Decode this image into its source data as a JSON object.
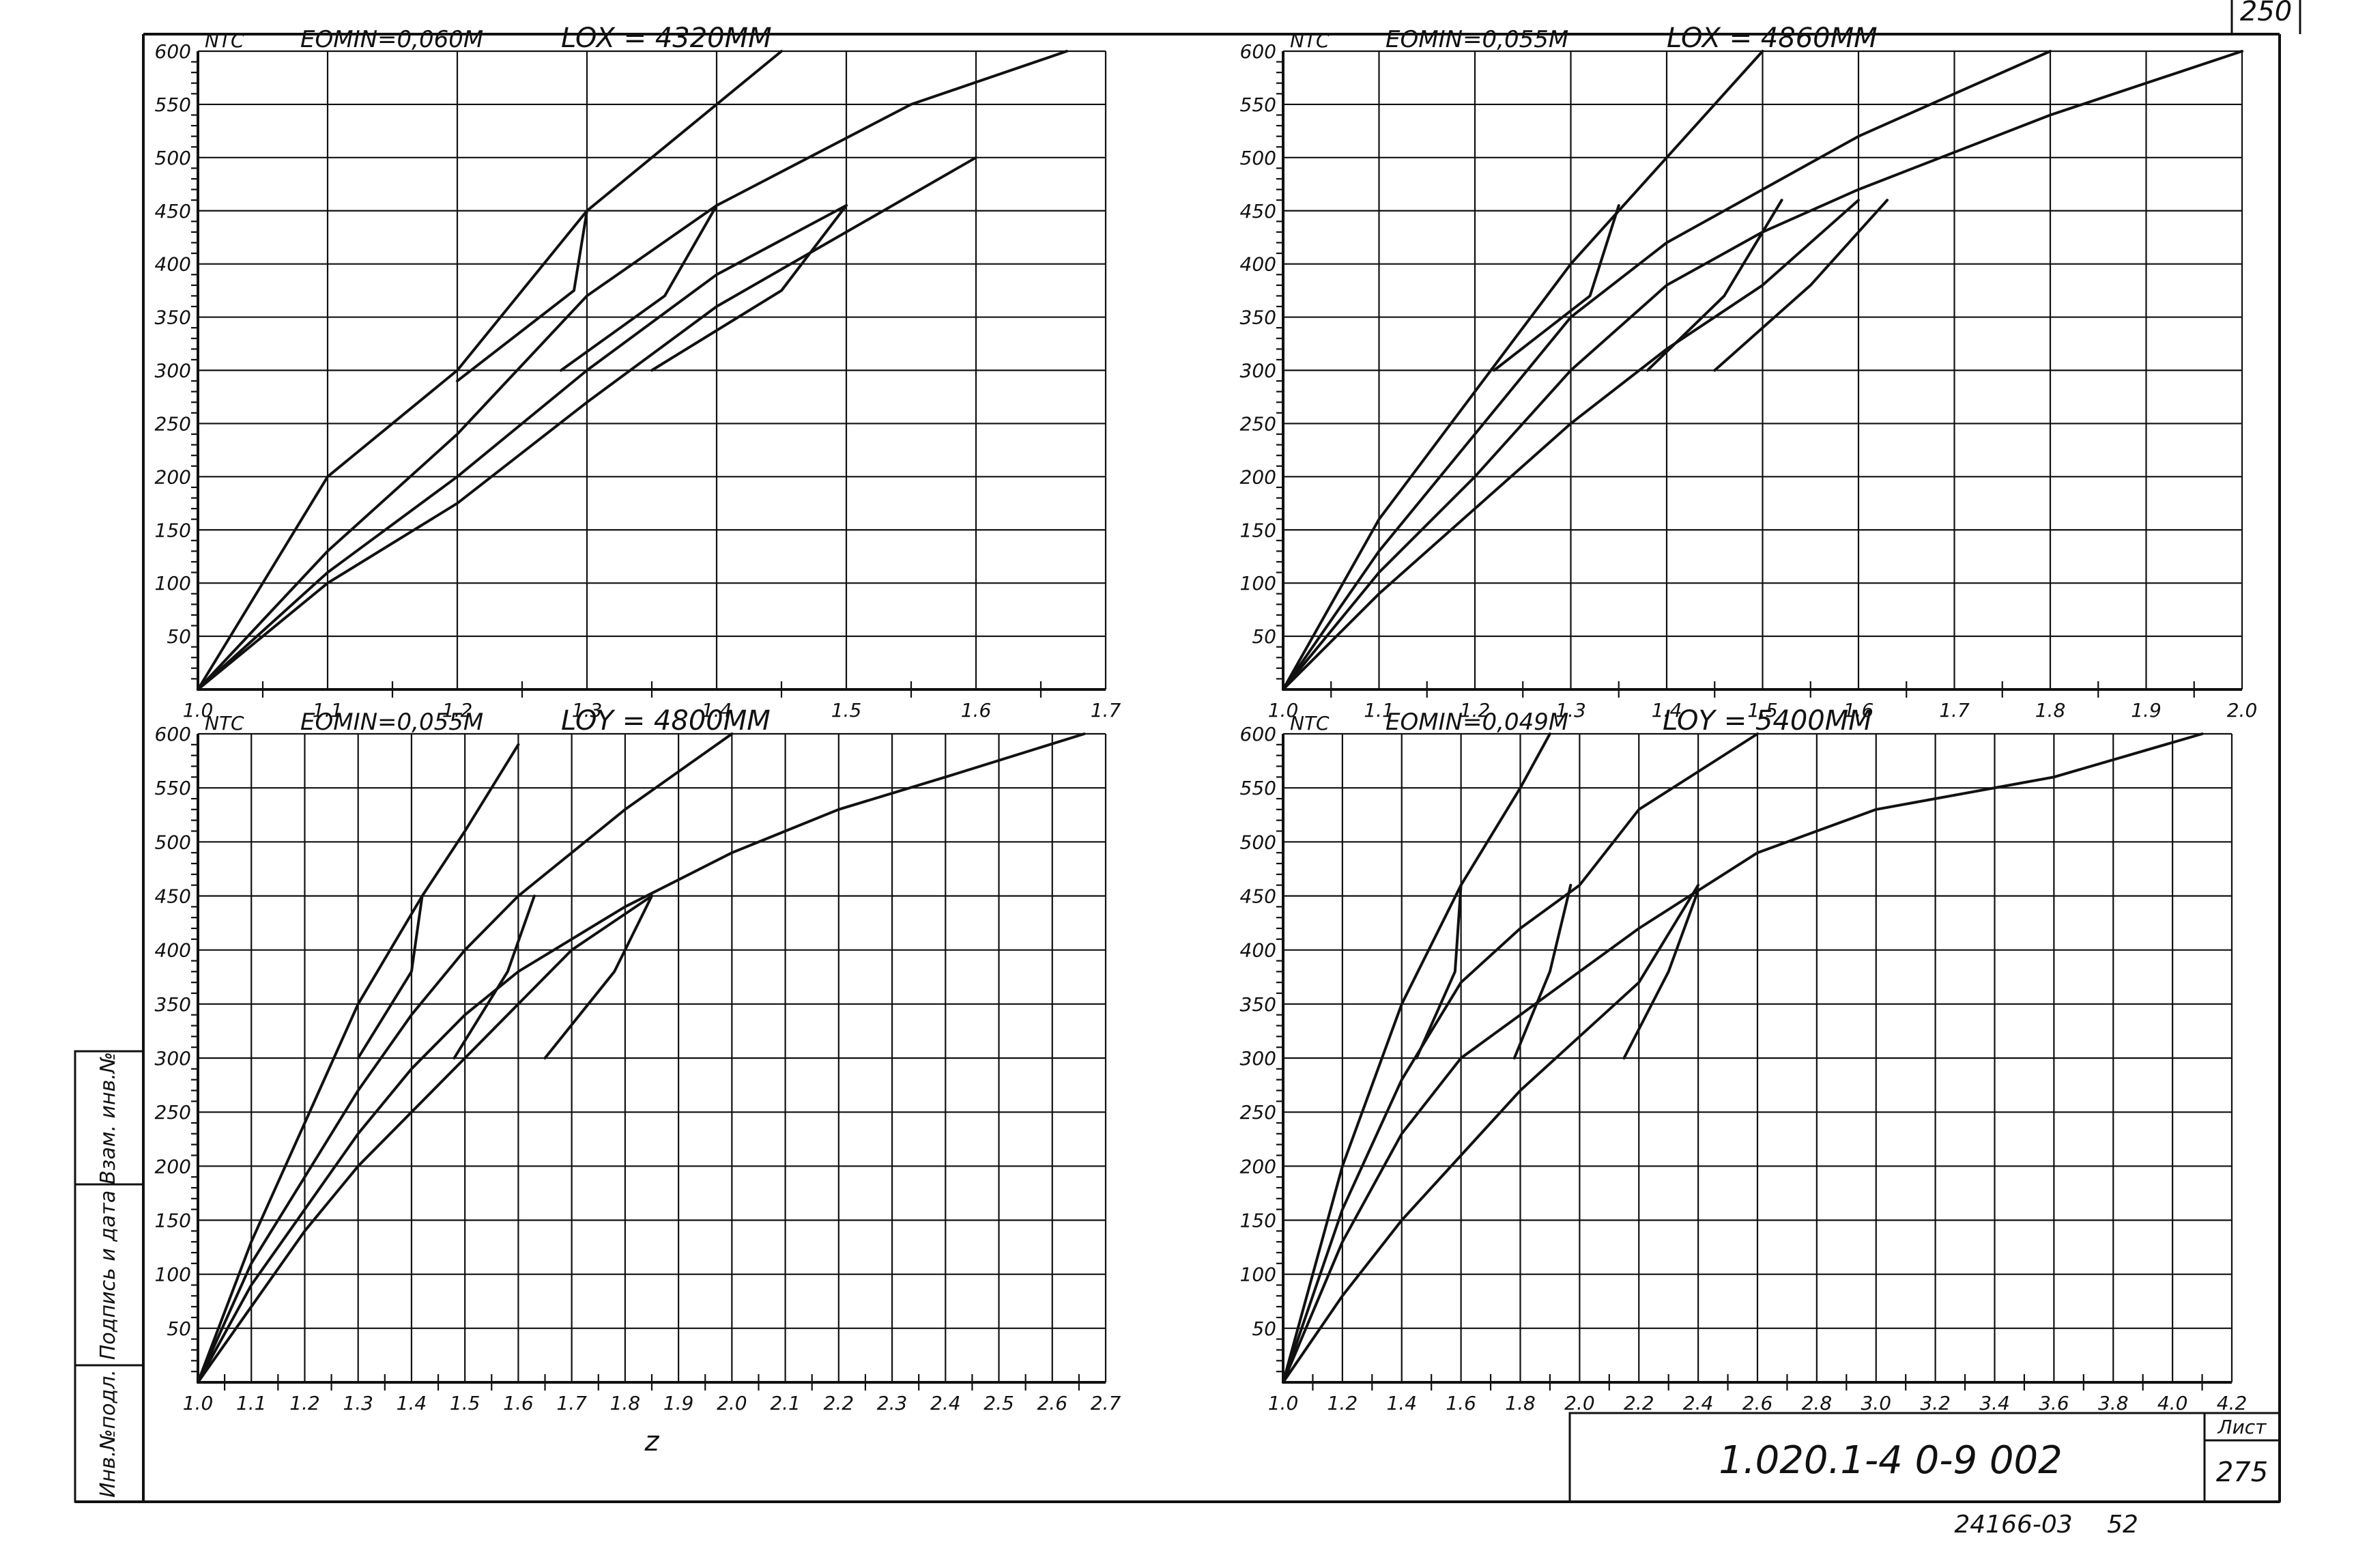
{
  "sheet": {
    "side_stamp": [
      "Инв.№подл.",
      "Подпись и дата",
      "Взам. инв.№"
    ],
    "corner_mark": "250",
    "document_code": "1.020.1-4  0-9 002",
    "sheet_label": "Лист",
    "sheet_number": "275",
    "archive_number": "24166-03",
    "archive_page": "52"
  },
  "chart_data": [
    {
      "type": "line",
      "header_left": "NTC",
      "param": "EOMIN=0,060M",
      "length": "LOX = 4320MM",
      "x_ticks": [
        "1.0",
        "1.1",
        "1.2",
        "1.3",
        "1.4",
        "1.5",
        "1.6",
        "1.7"
      ],
      "y_ticks": [
        "50",
        "100",
        "150",
        "200",
        "250",
        "300",
        "350",
        "400",
        "450",
        "500",
        "550",
        "600"
      ],
      "x_range": [
        1.0,
        1.7
      ],
      "y_range": [
        0,
        600
      ],
      "grid": true,
      "series": [
        {
          "points": [
            [
              1.0,
              0
            ],
            [
              1.1,
              200
            ],
            [
              1.2,
              300
            ],
            [
              1.3,
              450
            ],
            [
              1.4,
              550
            ],
            [
              1.45,
              600
            ]
          ]
        },
        {
          "points": [
            [
              1.0,
              0
            ],
            [
              1.1,
              130
            ],
            [
              1.2,
              240
            ],
            [
              1.3,
              370
            ],
            [
              1.4,
              455
            ],
            [
              1.55,
              550
            ],
            [
              1.67,
              600
            ]
          ]
        },
        {
          "points": [
            [
              1.0,
              0
            ],
            [
              1.1,
              110
            ],
            [
              1.2,
              200
            ],
            [
              1.3,
              300
            ],
            [
              1.4,
              390
            ],
            [
              1.5,
              455
            ]
          ]
        },
        {
          "points": [
            [
              1.0,
              0
            ],
            [
              1.1,
              100
            ],
            [
              1.2,
              175
            ],
            [
              1.3,
              270
            ],
            [
              1.4,
              360
            ],
            [
              1.5,
              430
            ],
            [
              1.6,
              500
            ]
          ]
        },
        {
          "points": [
            [
              1.3,
              450
            ],
            [
              1.29,
              375
            ],
            [
              1.2,
              290
            ]
          ]
        },
        {
          "points": [
            [
              1.4,
              455
            ],
            [
              1.36,
              370
            ],
            [
              1.28,
              300
            ]
          ]
        },
        {
          "points": [
            [
              1.5,
              455
            ],
            [
              1.45,
              375
            ],
            [
              1.35,
              300
            ]
          ]
        }
      ]
    },
    {
      "type": "line",
      "header_left": "NTC",
      "param": "EOMIN=0,055M",
      "length": "LOX = 4860MM",
      "x_ticks": [
        "1.0",
        "1.1",
        "1.2",
        "1.3",
        "1.4",
        "1.5",
        "1.6",
        "1.7",
        "1.8",
        "1.9",
        "2.0"
      ],
      "y_ticks": [
        "50",
        "100",
        "150",
        "200",
        "250",
        "300",
        "350",
        "400",
        "450",
        "500",
        "550",
        "600"
      ],
      "x_range": [
        1.0,
        2.0
      ],
      "y_range": [
        0,
        600
      ],
      "grid": true,
      "series": [
        {
          "points": [
            [
              1.0,
              0
            ],
            [
              1.1,
              160
            ],
            [
              1.2,
              280
            ],
            [
              1.3,
              400
            ],
            [
              1.4,
              500
            ],
            [
              1.5,
              600
            ]
          ]
        },
        {
          "points": [
            [
              1.0,
              0
            ],
            [
              1.1,
              130
            ],
            [
              1.2,
              240
            ],
            [
              1.3,
              350
            ],
            [
              1.4,
              420
            ],
            [
              1.5,
              470
            ],
            [
              1.6,
              520
            ],
            [
              1.8,
              600
            ]
          ]
        },
        {
          "points": [
            [
              1.0,
              0
            ],
            [
              1.1,
              110
            ],
            [
              1.2,
              200
            ],
            [
              1.3,
              300
            ],
            [
              1.4,
              380
            ],
            [
              1.5,
              430
            ],
            [
              1.6,
              470
            ],
            [
              1.8,
              540
            ],
            [
              2.0,
              600
            ]
          ]
        },
        {
          "points": [
            [
              1.0,
              0
            ],
            [
              1.1,
              90
            ],
            [
              1.2,
              170
            ],
            [
              1.3,
              250
            ],
            [
              1.4,
              320
            ],
            [
              1.5,
              380
            ],
            [
              1.6,
              460
            ]
          ]
        },
        {
          "points": [
            [
              1.35,
              455
            ],
            [
              1.32,
              370
            ],
            [
              1.22,
              300
            ]
          ]
        },
        {
          "points": [
            [
              1.52,
              460
            ],
            [
              1.46,
              370
            ],
            [
              1.38,
              300
            ]
          ]
        },
        {
          "points": [
            [
              1.63,
              460
            ],
            [
              1.55,
              380
            ],
            [
              1.45,
              300
            ]
          ]
        }
      ]
    },
    {
      "type": "line",
      "header_left": "NTC",
      "param": "EOMIN=0,055M",
      "length": "LOY = 4800MM",
      "x_label": "z",
      "x_ticks": [
        "1.0",
        "1.1",
        "1.2",
        "1.3",
        "1.4",
        "1.5",
        "1.6",
        "1.7",
        "1.8",
        "1.9",
        "2.0",
        "2.1",
        "2.2",
        "2.3",
        "2.4",
        "2.5",
        "2.6",
        "2.7"
      ],
      "y_ticks": [
        "50",
        "100",
        "150",
        "200",
        "250",
        "300",
        "350",
        "400",
        "450",
        "500",
        "550",
        "600"
      ],
      "x_range": [
        1.0,
        2.7
      ],
      "y_range": [
        0,
        600
      ],
      "grid": true,
      "series": [
        {
          "points": [
            [
              1.0,
              0
            ],
            [
              1.1,
              130
            ],
            [
              1.2,
              240
            ],
            [
              1.3,
              350
            ],
            [
              1.42,
              450
            ],
            [
              1.5,
              510
            ],
            [
              1.6,
              590
            ]
          ]
        },
        {
          "points": [
            [
              1.0,
              0
            ],
            [
              1.1,
              110
            ],
            [
              1.2,
              190
            ],
            [
              1.3,
              270
            ],
            [
              1.4,
              340
            ],
            [
              1.5,
              400
            ],
            [
              1.6,
              450
            ],
            [
              1.8,
              530
            ],
            [
              2.0,
              600
            ]
          ]
        },
        {
          "points": [
            [
              1.0,
              0
            ],
            [
              1.1,
              90
            ],
            [
              1.2,
              160
            ],
            [
              1.3,
              230
            ],
            [
              1.4,
              290
            ],
            [
              1.5,
              340
            ],
            [
              1.6,
              380
            ],
            [
              1.8,
              440
            ],
            [
              2.0,
              490
            ],
            [
              2.2,
              530
            ],
            [
              2.4,
              560
            ],
            [
              2.66,
              600
            ]
          ]
        },
        {
          "points": [
            [
              1.0,
              0
            ],
            [
              1.1,
              70
            ],
            [
              1.2,
              140
            ],
            [
              1.3,
              200
            ],
            [
              1.4,
              250
            ],
            [
              1.5,
              300
            ],
            [
              1.6,
              350
            ],
            [
              1.7,
              400
            ],
            [
              1.85,
              450
            ]
          ]
        },
        {
          "points": [
            [
              1.42,
              450
            ],
            [
              1.4,
              380
            ],
            [
              1.3,
              300
            ]
          ]
        },
        {
          "points": [
            [
              1.63,
              450
            ],
            [
              1.58,
              380
            ],
            [
              1.48,
              300
            ]
          ]
        },
        {
          "points": [
            [
              1.85,
              450
            ],
            [
              1.78,
              380
            ],
            [
              1.65,
              300
            ]
          ]
        }
      ]
    },
    {
      "type": "line",
      "header_left": "NTC",
      "param": "EOMIN=0,049M",
      "length": "LOY = 5400MM",
      "x_ticks": [
        "1.0",
        "1.2",
        "1.4",
        "1.6",
        "1.8",
        "2.0",
        "2.2",
        "2.4",
        "2.6",
        "2.8",
        "3.0",
        "3.2",
        "3.4",
        "3.6",
        "3.8",
        "4.0",
        "4.2"
      ],
      "y_ticks": [
        "50",
        "100",
        "150",
        "200",
        "250",
        "300",
        "350",
        "400",
        "450",
        "500",
        "550",
        "600"
      ],
      "x_range": [
        1.0,
        4.2
      ],
      "y_range": [
        0,
        600
      ],
      "grid": true,
      "series": [
        {
          "points": [
            [
              1.0,
              0
            ],
            [
              1.2,
              200
            ],
            [
              1.4,
              350
            ],
            [
              1.6,
              460
            ],
            [
              1.8,
              550
            ],
            [
              1.9,
              600
            ]
          ]
        },
        {
          "points": [
            [
              1.0,
              0
            ],
            [
              1.2,
              160
            ],
            [
              1.4,
              280
            ],
            [
              1.6,
              370
            ],
            [
              1.8,
              420
            ],
            [
              2.0,
              460
            ],
            [
              2.2,
              530
            ],
            [
              2.6,
              600
            ]
          ]
        },
        {
          "points": [
            [
              1.0,
              0
            ],
            [
              1.2,
              130
            ],
            [
              1.4,
              230
            ],
            [
              1.6,
              300
            ],
            [
              1.8,
              340
            ],
            [
              2.0,
              380
            ],
            [
              2.2,
              420
            ],
            [
              2.4,
              455
            ],
            [
              2.6,
              490
            ],
            [
              3.0,
              530
            ],
            [
              3.6,
              560
            ],
            [
              4.1,
              600
            ]
          ]
        },
        {
          "points": [
            [
              1.0,
              0
            ],
            [
              1.2,
              80
            ],
            [
              1.4,
              150
            ],
            [
              1.6,
              210
            ],
            [
              1.8,
              270
            ],
            [
              2.0,
              320
            ],
            [
              2.2,
              370
            ],
            [
              2.4,
              460
            ]
          ]
        },
        {
          "points": [
            [
              1.6,
              460
            ],
            [
              1.58,
              380
            ],
            [
              1.45,
              300
            ]
          ]
        },
        {
          "points": [
            [
              1.97,
              460
            ],
            [
              1.9,
              380
            ],
            [
              1.78,
              300
            ]
          ]
        },
        {
          "points": [
            [
              2.4,
              455
            ],
            [
              2.3,
              380
            ],
            [
              2.15,
              300
            ]
          ]
        }
      ]
    }
  ]
}
